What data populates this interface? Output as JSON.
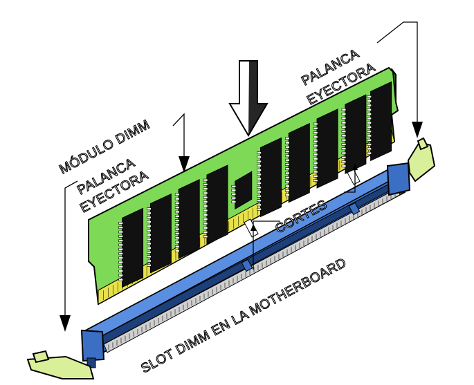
{
  "labels": {
    "top_right_lever_line1": "PALANCA",
    "top_right_lever_line2": "EYECTORA",
    "module": "MÓDULO DIMM",
    "left_lever_line1": "PALANCA",
    "left_lever_line2": "EYECTORA",
    "notches": "CORTES",
    "slot": "SLOT DIMM EN LA MOTHERBOARD"
  },
  "colors": {
    "pcb_green": "#7ed957",
    "pcb_dark": "#2f7a1c",
    "chip_black": "#111111",
    "slot_blue": "#3b6fc4",
    "slot_dark": "#1d3f7a",
    "lever_yellow": "#d9ef9a",
    "contact_gold": "#e8e24a"
  }
}
